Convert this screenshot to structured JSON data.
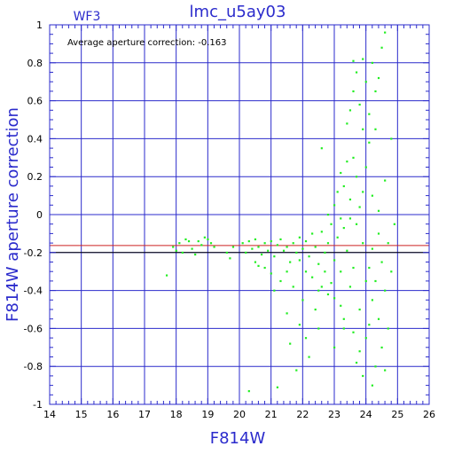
{
  "chart_data": {
    "type": "scatter",
    "title": "lmc_u5ay03",
    "corner_label": "WF3",
    "xlabel": "F814W",
    "ylabel": "F814W aperture correction",
    "annotation": "Average aperture correction:  -0.163",
    "xlim": [
      14,
      26
    ],
    "ylim": [
      -1,
      1
    ],
    "x_ticks": [
      14,
      15,
      16,
      17,
      18,
      19,
      20,
      21,
      22,
      23,
      24,
      25,
      26
    ],
    "y_ticks": [
      -1,
      -0.8,
      -0.6,
      -0.4,
      -0.2,
      0,
      0.2,
      0.4,
      0.6,
      0.8,
      1
    ],
    "y_tick_labels": [
      "-1",
      "-0.8",
      "-0.6",
      "-0.4",
      "-0.2",
      "0",
      "0.2",
      "0.4",
      "0.6",
      "0.8",
      "1"
    ],
    "grid": true,
    "reference_lines": [
      {
        "y": -0.163,
        "color": "#cc2222"
      },
      {
        "y": -0.2,
        "color": "#000000"
      }
    ],
    "colors": {
      "axes": "#2b2bcc",
      "grid": "#2b2bcc",
      "points": "#22ee22",
      "average_line": "#cc2222",
      "reference_line": "#000000"
    },
    "series": [
      {
        "points": [
          [
            17.7,
            -0.32
          ],
          [
            17.9,
            -0.17
          ],
          [
            18.0,
            -0.19
          ],
          [
            18.1,
            -0.15
          ],
          [
            18.2,
            -0.2
          ],
          [
            18.3,
            -0.13
          ],
          [
            18.4,
            -0.14
          ],
          [
            18.5,
            -0.18
          ],
          [
            18.6,
            -0.21
          ],
          [
            18.7,
            -0.14
          ],
          [
            18.8,
            -0.16
          ],
          [
            18.9,
            -0.12
          ],
          [
            19.0,
            -0.13
          ],
          [
            19.1,
            -0.15
          ],
          [
            19.2,
            -0.17
          ],
          [
            19.6,
            -0.2
          ],
          [
            19.7,
            -0.23
          ],
          [
            19.8,
            -0.17
          ],
          [
            20.1,
            -0.15
          ],
          [
            20.2,
            -0.2
          ],
          [
            20.3,
            -0.14
          ],
          [
            20.4,
            -0.18
          ],
          [
            20.5,
            -0.13
          ],
          [
            20.6,
            -0.17
          ],
          [
            20.7,
            -0.21
          ],
          [
            20.8,
            -0.15
          ],
          [
            20.9,
            -0.19
          ],
          [
            21.0,
            -0.14
          ],
          [
            21.1,
            -0.22
          ],
          [
            21.2,
            -0.16
          ],
          [
            21.3,
            -0.13
          ],
          [
            21.4,
            -0.19
          ],
          [
            21.5,
            -0.17
          ],
          [
            21.6,
            -0.25
          ],
          [
            21.7,
            -0.15
          ],
          [
            21.8,
            -0.2
          ],
          [
            21.9,
            -0.12
          ],
          [
            22.0,
            -0.18
          ],
          [
            20.5,
            -0.25
          ],
          [
            20.6,
            -0.27
          ],
          [
            20.8,
            -0.28
          ],
          [
            21.0,
            -0.31
          ],
          [
            21.1,
            -0.4
          ],
          [
            21.3,
            -0.35
          ],
          [
            21.5,
            -0.3
          ],
          [
            21.7,
            -0.38
          ],
          [
            21.9,
            -0.24
          ],
          [
            22.1,
            -0.3
          ],
          [
            20.3,
            -0.93
          ],
          [
            21.2,
            -0.91
          ],
          [
            21.8,
            -0.82
          ],
          [
            21.6,
            -0.68
          ],
          [
            22.1,
            -0.65
          ],
          [
            22.0,
            -0.45
          ],
          [
            22.4,
            -0.5
          ],
          [
            22.6,
            -0.38
          ],
          [
            22.8,
            -0.42
          ],
          [
            22.1,
            -0.14
          ],
          [
            22.2,
            -0.22
          ],
          [
            22.3,
            -0.1
          ],
          [
            22.4,
            -0.17
          ],
          [
            22.5,
            -0.26
          ],
          [
            22.6,
            -0.09
          ],
          [
            22.7,
            -0.2
          ],
          [
            22.8,
            -0.15
          ],
          [
            22.9,
            -0.05
          ],
          [
            23.0,
            -0.24
          ],
          [
            23.1,
            -0.12
          ],
          [
            23.2,
            -0.3
          ],
          [
            23.3,
            -0.07
          ],
          [
            23.4,
            -0.19
          ],
          [
            23.5,
            -0.02
          ],
          [
            23.6,
            -0.28
          ],
          [
            22.3,
            -0.33
          ],
          [
            22.5,
            -0.4
          ],
          [
            22.7,
            -0.3
          ],
          [
            22.9,
            -0.36
          ],
          [
            23.0,
            -0.44
          ],
          [
            23.2,
            -0.48
          ],
          [
            23.3,
            -0.55
          ],
          [
            23.5,
            -0.38
          ],
          [
            23.6,
            -0.62
          ],
          [
            23.8,
            -0.5
          ],
          [
            22.6,
            0.35
          ],
          [
            23.0,
            0.05
          ],
          [
            23.1,
            0.12
          ],
          [
            23.2,
            -0.02
          ],
          [
            23.3,
            0.15
          ],
          [
            23.4,
            0.28
          ],
          [
            23.5,
            0.08
          ],
          [
            23.6,
            0.3
          ],
          [
            23.7,
            0.2
          ],
          [
            23.8,
            0.04
          ],
          [
            23.9,
            0.12
          ],
          [
            24.0,
            0.25
          ],
          [
            23.4,
            0.48
          ],
          [
            23.5,
            0.55
          ],
          [
            23.6,
            0.65
          ],
          [
            23.7,
            0.75
          ],
          [
            23.8,
            0.58
          ],
          [
            23.9,
            0.45
          ],
          [
            24.0,
            0.7
          ],
          [
            24.1,
            0.53
          ],
          [
            24.2,
            0.8
          ],
          [
            24.3,
            0.65
          ],
          [
            24.4,
            0.72
          ],
          [
            24.5,
            0.88
          ],
          [
            24.6,
            0.96
          ],
          [
            23.6,
            0.81
          ],
          [
            23.9,
            0.82
          ],
          [
            23.8,
            -0.72
          ],
          [
            24.0,
            -0.65
          ],
          [
            24.1,
            -0.58
          ],
          [
            24.2,
            -0.45
          ],
          [
            24.3,
            -0.8
          ],
          [
            24.4,
            -0.55
          ],
          [
            24.5,
            -0.7
          ],
          [
            24.6,
            -0.82
          ],
          [
            24.7,
            -0.6
          ],
          [
            23.9,
            -0.85
          ],
          [
            24.2,
            -0.9
          ],
          [
            23.7,
            -0.78
          ],
          [
            24.1,
            -0.28
          ],
          [
            24.2,
            -0.18
          ],
          [
            24.3,
            -0.35
          ],
          [
            24.4,
            -0.1
          ],
          [
            24.5,
            -0.25
          ],
          [
            24.6,
            -0.4
          ],
          [
            24.7,
            -0.15
          ],
          [
            24.8,
            -0.3
          ],
          [
            24.9,
            -0.05
          ],
          [
            24.2,
            0.1
          ],
          [
            24.4,
            0.02
          ],
          [
            24.6,
            0.18
          ],
          [
            24.8,
            0.4
          ],
          [
            23.0,
            -0.7
          ],
          [
            23.3,
            -0.6
          ],
          [
            22.2,
            -0.75
          ],
          [
            22.5,
            -0.6
          ],
          [
            21.5,
            -0.52
          ],
          [
            21.9,
            -0.58
          ],
          [
            23.2,
            0.22
          ],
          [
            22.8,
            0.0
          ],
          [
            23.7,
            -0.05
          ],
          [
            23.9,
            -0.15
          ],
          [
            24.0,
            -0.35
          ],
          [
            24.1,
            0.38
          ],
          [
            24.3,
            0.45
          ]
        ]
      }
    ]
  }
}
